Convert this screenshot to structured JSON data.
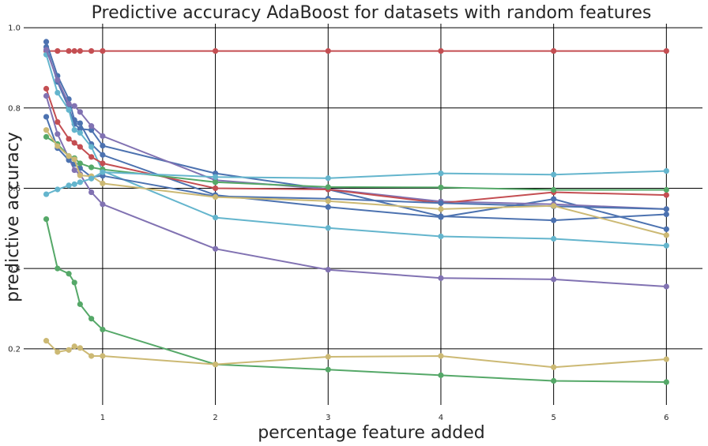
{
  "chart_data": {
    "type": "line",
    "title": "Predictive accuracy AdaBoost for datasets with random features",
    "xlabel": "percentage feature added",
    "ylabel": "predictive accuracy",
    "xlim": [
      0.3,
      6.32
    ],
    "ylim": [
      0.06,
      1.01
    ],
    "xticks": [
      1,
      2,
      3,
      4,
      5,
      6
    ],
    "yticks": [
      0.2,
      0.4,
      0.6,
      0.8,
      1.0
    ],
    "xtick_labels": [
      "1",
      "2",
      "3",
      "4",
      "5",
      "6"
    ],
    "ytick_labels": [
      "0.2",
      "0.4",
      "0.6",
      "0.8",
      "1.0"
    ],
    "grid": true,
    "x": [
      0.5,
      0.6,
      0.7,
      0.75,
      0.8,
      0.9,
      1,
      2,
      3,
      4,
      5,
      6
    ],
    "series": [
      {
        "color": "#c44e52",
        "values": [
          0.942,
          0.942,
          0.942,
          0.942,
          0.942,
          0.942,
          0.942,
          0.942,
          0.942,
          0.942,
          0.942,
          0.942
        ]
      },
      {
        "color": "#4c72b0",
        "values": [
          0.965,
          0.88,
          0.822,
          0.77,
          0.762,
          0.71,
          0.683,
          0.583,
          0.553,
          0.528,
          0.573,
          0.498
        ]
      },
      {
        "color": "#4c72b0",
        "values": [
          0.952,
          0.865,
          0.8,
          0.76,
          0.748,
          0.745,
          0.706,
          0.637,
          0.597,
          0.53,
          0.52,
          0.535
        ]
      },
      {
        "color": "#64b5cd",
        "values": [
          0.933,
          0.838,
          0.795,
          0.745,
          0.738,
          0.703,
          0.643,
          0.527,
          0.501,
          0.48,
          0.474,
          0.457
        ]
      },
      {
        "color": "#8172b2",
        "values": [
          0.945,
          0.87,
          0.81,
          0.805,
          0.79,
          0.755,
          0.73,
          0.62,
          0.598,
          0.567,
          0.56,
          0.548
        ]
      },
      {
        "color": "#c44e52",
        "values": [
          0.848,
          0.765,
          0.723,
          0.713,
          0.703,
          0.678,
          0.662,
          0.6,
          0.597,
          0.563,
          0.59,
          0.583
        ]
      },
      {
        "color": "#8172b2",
        "values": [
          0.83,
          0.735,
          0.675,
          0.645,
          0.635,
          0.59,
          0.56,
          0.449,
          0.397,
          0.376,
          0.373,
          0.355
        ]
      },
      {
        "color": "#4c72b0",
        "values": [
          0.778,
          0.7,
          0.67,
          0.66,
          0.65,
          0.628,
          0.631,
          0.58,
          0.574,
          0.563,
          0.555,
          0.548
        ]
      },
      {
        "color": "#55a868",
        "values": [
          0.728,
          0.71,
          0.68,
          0.675,
          0.662,
          0.652,
          0.647,
          0.615,
          0.603,
          0.602,
          0.596,
          0.596
        ]
      },
      {
        "color": "#ccb974",
        "values": [
          0.745,
          0.705,
          0.68,
          0.672,
          0.632,
          0.63,
          0.612,
          0.578,
          0.568,
          0.548,
          0.556,
          0.483
        ]
      },
      {
        "color": "#64b5cd",
        "values": [
          0.585,
          0.597,
          0.607,
          0.61,
          0.615,
          0.624,
          0.64,
          0.628,
          0.625,
          0.637,
          0.634,
          0.643
        ]
      },
      {
        "color": "#55a868",
        "values": [
          0.523,
          0.4,
          0.387,
          0.365,
          0.311,
          0.275,
          0.248,
          0.161,
          0.148,
          0.134,
          0.12,
          0.117
        ]
      },
      {
        "color": "#ccb974",
        "values": [
          0.22,
          0.192,
          0.197,
          0.206,
          0.202,
          0.182,
          0.182,
          0.161,
          0.18,
          0.182,
          0.154,
          0.174
        ]
      }
    ]
  }
}
